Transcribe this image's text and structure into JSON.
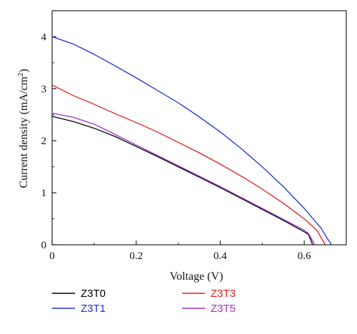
{
  "chart_data": {
    "type": "line",
    "title": "",
    "xlabel": "Voltage (V)",
    "ylabel_main": "Current density (mA/cm",
    "ylabel_sup": "2",
    "ylabel_close": ")",
    "xlim": [
      0,
      0.7
    ],
    "ylim": [
      0,
      4.5
    ],
    "x_ticks": [
      0,
      0.2,
      0.4,
      0.6
    ],
    "x_tick_labels": [
      "0",
      "0.2",
      "0.4",
      "0.6"
    ],
    "y_ticks": [
      0,
      1,
      2,
      3,
      4
    ],
    "y_tick_labels": [
      "0",
      "1",
      "2",
      "3",
      "4"
    ],
    "grid": false,
    "legend_position": "below",
    "series": [
      {
        "name": "Z3T0",
        "color": "#000000",
        "points": [
          [
            0,
            2.47
          ],
          [
            0.05,
            2.37
          ],
          [
            0.1,
            2.24
          ],
          [
            0.15,
            2.08
          ],
          [
            0.2,
            1.89
          ],
          [
            0.25,
            1.7
          ],
          [
            0.3,
            1.5
          ],
          [
            0.35,
            1.3
          ],
          [
            0.4,
            1.1
          ],
          [
            0.45,
            0.89
          ],
          [
            0.5,
            0.68
          ],
          [
            0.55,
            0.47
          ],
          [
            0.6,
            0.25
          ],
          [
            0.61,
            0.2
          ],
          [
            0.62,
            0.0
          ]
        ]
      },
      {
        "name": "Z3T1",
        "color": "#1f2fd1",
        "points": [
          [
            0,
            4.0
          ],
          [
            0.05,
            3.86
          ],
          [
            0.1,
            3.66
          ],
          [
            0.15,
            3.44
          ],
          [
            0.2,
            3.21
          ],
          [
            0.25,
            2.97
          ],
          [
            0.3,
            2.73
          ],
          [
            0.35,
            2.46
          ],
          [
            0.4,
            2.17
          ],
          [
            0.45,
            1.85
          ],
          [
            0.5,
            1.5
          ],
          [
            0.55,
            1.12
          ],
          [
            0.6,
            0.7
          ],
          [
            0.64,
            0.32
          ],
          [
            0.655,
            0.12
          ],
          [
            0.665,
            0.0
          ]
        ]
      },
      {
        "name": "Z3T3",
        "color": "#e0201a",
        "points": [
          [
            0,
            3.07
          ],
          [
            0.05,
            2.87
          ],
          [
            0.1,
            2.7
          ],
          [
            0.15,
            2.52
          ],
          [
            0.2,
            2.35
          ],
          [
            0.25,
            2.17
          ],
          [
            0.3,
            1.97
          ],
          [
            0.35,
            1.77
          ],
          [
            0.4,
            1.55
          ],
          [
            0.45,
            1.32
          ],
          [
            0.5,
            1.07
          ],
          [
            0.55,
            0.8
          ],
          [
            0.6,
            0.5
          ],
          [
            0.63,
            0.28
          ],
          [
            0.65,
            0.0
          ]
        ]
      },
      {
        "name": "Z3T5",
        "color": "#a030c8",
        "points": [
          [
            0,
            2.53
          ],
          [
            0.05,
            2.45
          ],
          [
            0.1,
            2.32
          ],
          [
            0.15,
            2.12
          ],
          [
            0.2,
            1.92
          ],
          [
            0.25,
            1.72
          ],
          [
            0.3,
            1.52
          ],
          [
            0.35,
            1.32
          ],
          [
            0.4,
            1.12
          ],
          [
            0.45,
            0.91
          ],
          [
            0.5,
            0.7
          ],
          [
            0.55,
            0.49
          ],
          [
            0.6,
            0.28
          ],
          [
            0.61,
            0.22
          ],
          [
            0.625,
            0.0
          ]
        ]
      }
    ]
  }
}
